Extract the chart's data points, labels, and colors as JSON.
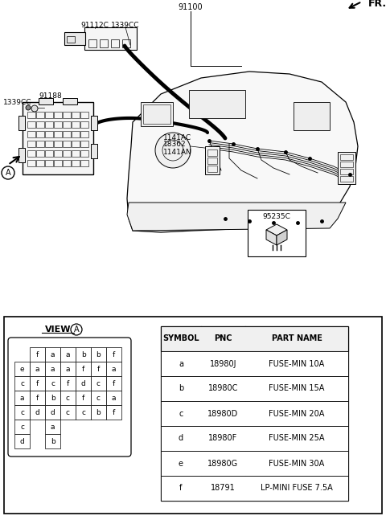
{
  "bg_color": "#ffffff",
  "table_data": {
    "headers": [
      "SYMBOL",
      "PNC",
      "PART NAME"
    ],
    "rows": [
      [
        "a",
        "18980J",
        "FUSE-MIN 10A"
      ],
      [
        "b",
        "18980C",
        "FUSE-MIN 15A"
      ],
      [
        "c",
        "18980D",
        "FUSE-MIN 20A"
      ],
      [
        "d",
        "18980F",
        "FUSE-MIN 25A"
      ],
      [
        "e",
        "18980G",
        "FUSE-MIN 30A"
      ],
      [
        "f",
        "18791",
        "LP-MINI FUSE 7.5A"
      ]
    ]
  },
  "fuse_grid": [
    [
      "",
      "f",
      "a",
      "a",
      "b",
      "b",
      "f"
    ],
    [
      "e",
      "a",
      "a",
      "a",
      "f",
      "f",
      "a"
    ],
    [
      "c",
      "f",
      "c",
      "f",
      "d",
      "c",
      "f"
    ],
    [
      "a",
      "f",
      "b",
      "c",
      "f",
      "c",
      "a"
    ],
    [
      "c",
      "d",
      "d",
      "c",
      "c",
      "b",
      "f"
    ],
    [
      "c",
      "",
      "a",
      "",
      "",
      "",
      ""
    ],
    [
      "d",
      "",
      "b",
      "",
      "",
      "",
      ""
    ]
  ]
}
